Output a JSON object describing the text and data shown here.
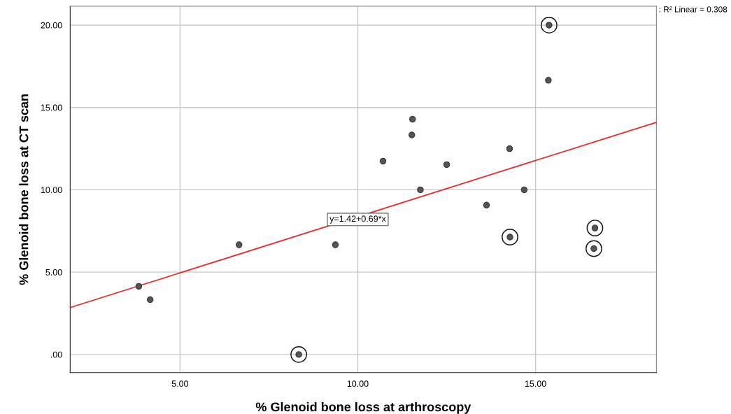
{
  "chart_data": {
    "type": "scatter",
    "xlabel": "% Glenoid bone loss at arthroscopy",
    "ylabel": "% Glenoid bone loss at CT scan",
    "xlim": [
      1.91,
      18.4
    ],
    "ylim": [
      -1.1,
      21.15
    ],
    "xticks": [
      {
        "value": 5,
        "label": "5.00"
      },
      {
        "value": 10,
        "label": "10.00"
      },
      {
        "value": 15,
        "label": "15.00"
      }
    ],
    "yticks": [
      {
        "value": 0,
        "label": ".00"
      },
      {
        "value": 5,
        "label": "5.00"
      },
      {
        "value": 10,
        "label": "10.00"
      },
      {
        "value": 15,
        "label": "15.00"
      },
      {
        "value": 20,
        "label": "20.00"
      }
    ],
    "grid": true,
    "marker": "circle",
    "series": [
      {
        "color": "#555555",
        "x": [
          15.36,
          11.54,
          11.52,
          10.71,
          12.5,
          14.27,
          11.76,
          14.68,
          13.62,
          6.66,
          9.37,
          3.84,
          4.16
        ],
        "values": [
          16.65,
          14.29,
          13.33,
          11.74,
          11.53,
          12.5,
          10.0,
          10.0,
          9.07,
          6.66,
          6.66,
          4.14,
          3.33
        ]
      },
      {
        "color": "#555555",
        "x": [
          15.38,
          14.28,
          16.67,
          16.64,
          8.34
        ],
        "values": [
          20.0,
          7.13,
          7.68,
          6.43,
          0.0
        ]
      },
      {
        "type": "line",
        "marker": "none",
        "color": "#e03030",
        "x": [
          1.91,
          18.4
        ],
        "values": [
          2.85,
          14.1
        ]
      }
    ],
    "annotations": [
      {
        "text": "y=1.42+0.69*x",
        "x": 10.0,
        "y": 8.2
      },
      ": R² Linear = 0.308"
    ]
  }
}
